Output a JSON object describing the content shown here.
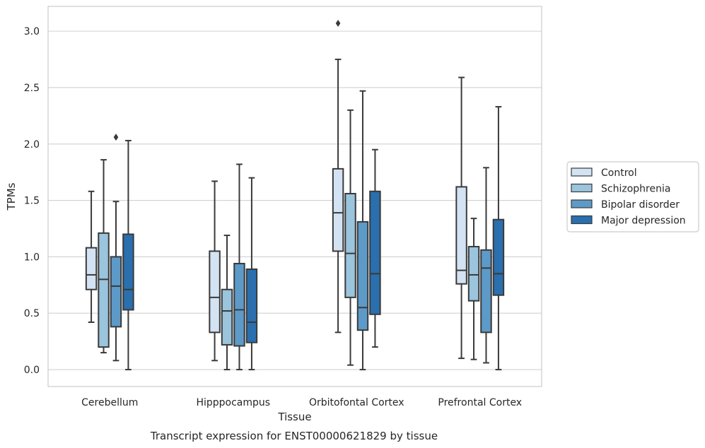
{
  "caption": "Transcript expression for ENST00000621829 by tissue",
  "chart_data": {
    "type": "box",
    "xlabel": "Tissue",
    "ylabel": "TPMs",
    "ylim": [
      -0.15,
      3.22
    ],
    "yticks": [
      0.0,
      0.5,
      1.0,
      1.5,
      2.0,
      2.5,
      3.0
    ],
    "ytick_labels": [
      "0.0",
      "0.5",
      "1.0",
      "1.5",
      "2.0",
      "2.5",
      "3.0"
    ],
    "grid": "horizontal",
    "legend_position": "right",
    "categories": [
      "Cerebellum",
      "Hipppocampus",
      "Orbitofontal Cortex",
      "Prefrontal Cortex"
    ],
    "series": [
      {
        "name": "Control",
        "color": "#d4e3f3",
        "boxes": [
          {
            "whislo": 0.42,
            "q1": 0.71,
            "med": 0.84,
            "q3": 1.08,
            "whishi": 1.58,
            "fliers": []
          },
          {
            "whislo": 0.08,
            "q1": 0.33,
            "med": 0.64,
            "q3": 1.05,
            "whishi": 1.67,
            "fliers": []
          },
          {
            "whislo": 0.33,
            "q1": 1.05,
            "med": 1.39,
            "q3": 1.78,
            "whishi": 2.75,
            "fliers": [
              3.07
            ]
          },
          {
            "whislo": 0.1,
            "q1": 0.76,
            "med": 0.88,
            "q3": 1.62,
            "whishi": 2.59,
            "fliers": []
          }
        ]
      },
      {
        "name": "Schizophrenia",
        "color": "#9bc4dd",
        "boxes": [
          {
            "whislo": 0.15,
            "q1": 0.2,
            "med": 0.8,
            "q3": 1.21,
            "whishi": 1.86,
            "fliers": []
          },
          {
            "whislo": 0.0,
            "q1": 0.22,
            "med": 0.52,
            "q3": 0.71,
            "whishi": 1.19,
            "fliers": []
          },
          {
            "whislo": 0.04,
            "q1": 0.64,
            "med": 1.03,
            "q3": 1.56,
            "whishi": 2.3,
            "fliers": []
          },
          {
            "whislo": 0.09,
            "q1": 0.61,
            "med": 0.84,
            "q3": 1.09,
            "whishi": 1.34,
            "fliers": []
          }
        ]
      },
      {
        "name": "Bipolar disorder",
        "color": "#5d9ac8",
        "boxes": [
          {
            "whislo": 0.08,
            "q1": 0.38,
            "med": 0.74,
            "q3": 1.0,
            "whishi": 1.49,
            "fliers": [
              2.06
            ]
          },
          {
            "whislo": 0.0,
            "q1": 0.21,
            "med": 0.53,
            "q3": 0.94,
            "whishi": 1.82,
            "fliers": []
          },
          {
            "whislo": 0.0,
            "q1": 0.35,
            "med": 0.55,
            "q3": 1.31,
            "whishi": 2.47,
            "fliers": []
          },
          {
            "whislo": 0.06,
            "q1": 0.33,
            "med": 0.9,
            "q3": 1.06,
            "whishi": 1.79,
            "fliers": []
          }
        ]
      },
      {
        "name": "Major depression",
        "color": "#2a6fae",
        "boxes": [
          {
            "whislo": 0.0,
            "q1": 0.53,
            "med": 0.71,
            "q3": 1.2,
            "whishi": 2.03,
            "fliers": []
          },
          {
            "whislo": 0.0,
            "q1": 0.24,
            "med": 0.42,
            "q3": 0.89,
            "whishi": 1.7,
            "fliers": []
          },
          {
            "whislo": 0.2,
            "q1": 0.49,
            "med": 0.85,
            "q3": 1.58,
            "whishi": 1.95,
            "fliers": []
          },
          {
            "whislo": 0.0,
            "q1": 0.66,
            "med": 0.85,
            "q3": 1.33,
            "whishi": 2.33,
            "fliers": []
          }
        ]
      }
    ]
  }
}
